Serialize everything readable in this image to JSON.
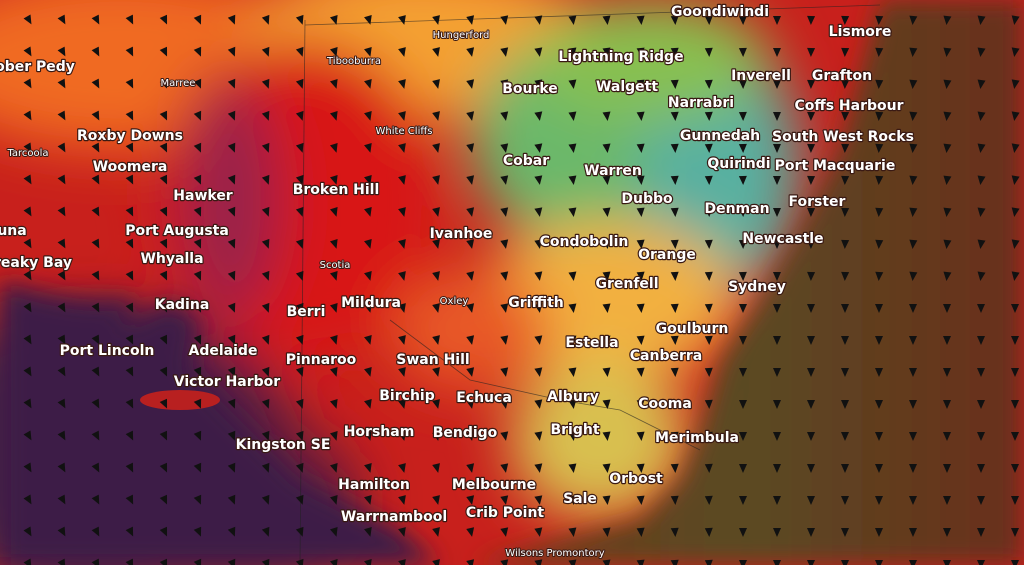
{
  "places": {
    "major": [
      "Goondiwindi",
      "Lismore",
      "Lightning Ridge",
      "Inverell",
      "Grafton",
      "Bourke",
      "Walgett",
      "Narrabri",
      "Coffs Harbour",
      "Roxby Downs",
      "Gunnedah",
      "South West Rocks",
      "Cobar",
      "Quirindi",
      "Port Macquarie",
      "Woomera",
      "Warren",
      "Broken Hill",
      "Hawker",
      "Dubbo",
      "Forster",
      "Denman",
      "Port Augusta",
      "Ivanhoe",
      "Newcastle",
      "Condobolin",
      "Whyalla",
      "Orange",
      "Grenfell",
      "Sydney",
      "Kadina",
      "Mildura",
      "Griffith",
      "Berri",
      "Goulburn",
      "Port Lincoln",
      "Adelaide",
      "Estella",
      "Canberra",
      "Pinnaroo",
      "Swan Hill",
      "Victor Harbor",
      "Birchip",
      "Echuca",
      "Albury",
      "Cooma",
      "Bright",
      "Kingston SE",
      "Horsham",
      "Bendigo",
      "Merimbula",
      "Orbost",
      "Hamilton",
      "Melbourne",
      "Sale",
      "Crib Point",
      "Warrnambool",
      "ober Pedy",
      "una",
      "reaky Bay"
    ],
    "minor": [
      "Hungerford",
      "Tibooburra",
      "Marree",
      "Tarcoola",
      "White Cliffs",
      "Scotia",
      "Oxley",
      "Wilsons Promontory"
    ]
  }
}
